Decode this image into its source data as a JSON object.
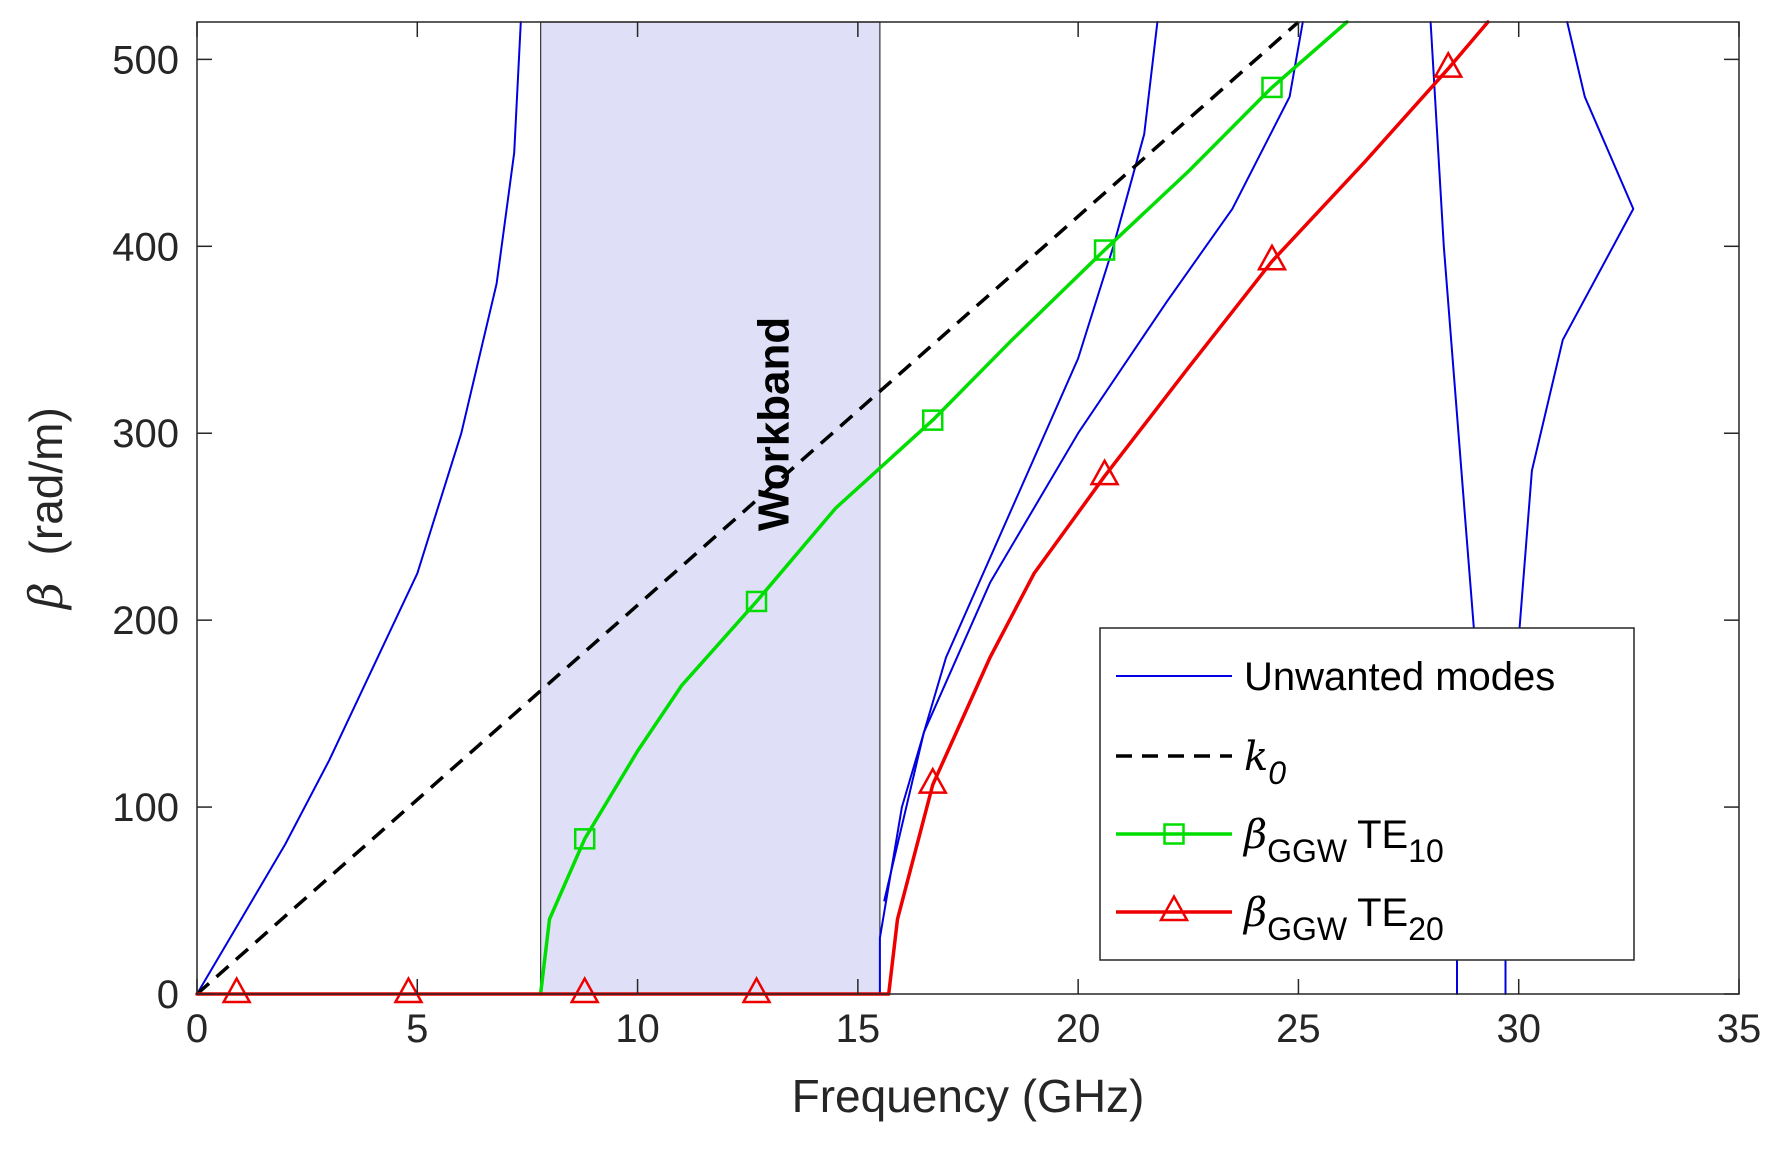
{
  "chart_data": {
    "type": "line",
    "title": "",
    "xlabel": "Frequency (GHz)",
    "ylabel_symbol": "β",
    "ylabel_unit": "(rad/m)",
    "xlim": [
      0,
      35
    ],
    "ylim": [
      0,
      520
    ],
    "xticks": [
      0,
      5,
      10,
      15,
      20,
      25,
      30,
      35
    ],
    "yticks": [
      0,
      100,
      200,
      300,
      400,
      500
    ],
    "grid": false,
    "legend_position": "bottom-right",
    "band": {
      "label": "Workband",
      "x_start": 7.8,
      "x_end": 15.5,
      "color": "#dfe0f7"
    },
    "colors": {
      "unwanted": "#0000e0",
      "k0": "#000000",
      "te10": "#00dd00",
      "te20": "#ee0000"
    },
    "legend": [
      {
        "key": "unwanted",
        "text": "Unwanted modes"
      },
      {
        "key": "k0",
        "symbol": "k",
        "sub": "0"
      },
      {
        "key": "te10",
        "symbol": "β",
        "sub": "GGW",
        "mode": "TE",
        "mode_sub": "10"
      },
      {
        "key": "te20",
        "symbol": "β",
        "sub": "GGW",
        "mode": "TE",
        "mode_sub": "20"
      }
    ],
    "series": [
      {
        "name": "Unwanted modes",
        "key": "unwanted",
        "points": [
          [
            0,
            0
          ],
          [
            1,
            40
          ],
          [
            2,
            80
          ],
          [
            3,
            125
          ],
          [
            4,
            175
          ],
          [
            5,
            225
          ],
          [
            6,
            300
          ],
          [
            6.8,
            380
          ],
          [
            7.2,
            450
          ],
          [
            7.35,
            520
          ]
        ]
      },
      {
        "name": "Unwanted modes",
        "key": "unwanted",
        "points": [
          [
            15.5,
            0
          ],
          [
            15.5,
            30
          ],
          [
            16,
            100
          ],
          [
            17,
            180
          ],
          [
            18.5,
            260
          ],
          [
            20,
            340
          ],
          [
            20.8,
            400
          ],
          [
            21.5,
            460
          ],
          [
            21.8,
            520
          ]
        ]
      },
      {
        "name": "Unwanted modes",
        "key": "unwanted",
        "points": [
          [
            15.6,
            50
          ],
          [
            16.5,
            140
          ],
          [
            18,
            220
          ],
          [
            20,
            300
          ],
          [
            22,
            370
          ],
          [
            23.5,
            420
          ],
          [
            24.8,
            480
          ],
          [
            25.1,
            520
          ]
        ]
      },
      {
        "name": "Unwanted modes",
        "key": "unwanted",
        "points": [
          [
            28.0,
            520
          ],
          [
            28.3,
            400
          ],
          [
            28.8,
            250
          ],
          [
            29.0,
            190
          ]
        ]
      },
      {
        "name": "Unwanted modes",
        "key": "unwanted",
        "points": [
          [
            28.6,
            0
          ],
          [
            28.6,
            20
          ]
        ]
      },
      {
        "name": "Unwanted modes",
        "key": "unwanted",
        "points": [
          [
            29.7,
            0
          ],
          [
            29.7,
            20
          ]
        ]
      },
      {
        "name": "Unwanted modes",
        "key": "unwanted",
        "points": [
          [
            30.0,
            190
          ],
          [
            30.3,
            280
          ],
          [
            31.0,
            350
          ],
          [
            32.6,
            420
          ],
          [
            31.5,
            480
          ],
          [
            31.1,
            520
          ]
        ]
      },
      {
        "name": "k0",
        "key": "k0",
        "points": [
          [
            0,
            0
          ],
          [
            25,
            520
          ]
        ]
      },
      {
        "name": "βGGW TE10",
        "key": "te10",
        "points": [
          [
            7.8,
            0
          ],
          [
            8.0,
            40
          ],
          [
            8.8,
            83
          ],
          [
            10,
            130
          ],
          [
            11,
            165
          ],
          [
            12.7,
            210
          ],
          [
            14.5,
            260
          ],
          [
            16.7,
            307
          ],
          [
            18.5,
            350
          ],
          [
            20.6,
            398
          ],
          [
            22.5,
            440
          ],
          [
            24.4,
            485
          ],
          [
            26.1,
            520
          ]
        ],
        "markers": [
          [
            8.8,
            83
          ],
          [
            12.7,
            210
          ],
          [
            16.7,
            307
          ],
          [
            20.6,
            398
          ],
          [
            24.4,
            485
          ]
        ]
      },
      {
        "name": "βGGW TE20",
        "key": "te20",
        "points": [
          [
            0,
            0
          ],
          [
            15.7,
            0
          ],
          [
            15.9,
            40
          ],
          [
            16.7,
            112
          ],
          [
            18,
            180
          ],
          [
            19,
            225
          ],
          [
            20.6,
            277
          ],
          [
            22.5,
            335
          ],
          [
            24.4,
            392
          ],
          [
            26.5,
            445
          ],
          [
            28.4,
            495
          ],
          [
            29.3,
            520
          ]
        ],
        "markers": [
          [
            0.9,
            0
          ],
          [
            4.8,
            0
          ],
          [
            8.8,
            0
          ],
          [
            12.7,
            0
          ],
          [
            16.7,
            112
          ],
          [
            20.6,
            277
          ],
          [
            24.4,
            392
          ],
          [
            28.4,
            495
          ]
        ]
      }
    ]
  }
}
